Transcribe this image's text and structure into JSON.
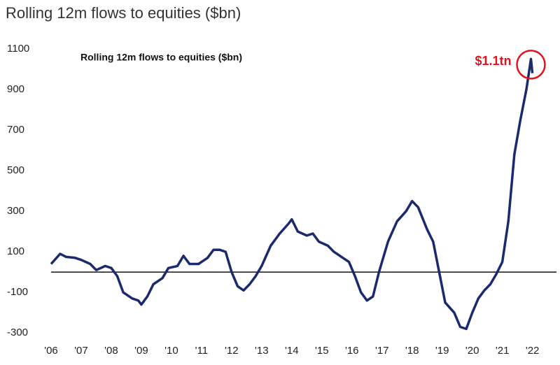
{
  "chart_data": {
    "type": "line",
    "title": "Rolling 12m flows to equities ($bn)",
    "inner_title": "Rolling 12m flows to equities ($bn)",
    "annotation": "$1.1tn",
    "x": [
      2006.0,
      2006.3,
      2006.5,
      2006.8,
      2007.0,
      2007.3,
      2007.5,
      2007.8,
      2008.0,
      2008.2,
      2008.4,
      2008.7,
      2008.9,
      2009.0,
      2009.2,
      2009.4,
      2009.7,
      2009.9,
      2010.2,
      2010.4,
      2010.6,
      2010.9,
      2011.2,
      2011.4,
      2011.6,
      2011.8,
      2012.0,
      2012.2,
      2012.4,
      2012.6,
      2012.8,
      2013.0,
      2013.3,
      2013.6,
      2013.9,
      2014.0,
      2014.2,
      2014.5,
      2014.7,
      2014.9,
      2015.2,
      2015.4,
      2015.7,
      2015.9,
      2016.1,
      2016.3,
      2016.5,
      2016.7,
      2016.9,
      2017.2,
      2017.5,
      2017.8,
      2018.0,
      2018.2,
      2018.5,
      2018.7,
      2018.9,
      2019.1,
      2019.4,
      2019.6,
      2019.8,
      2020.0,
      2020.2,
      2020.4,
      2020.6,
      2020.8,
      2021.0,
      2021.2,
      2021.4,
      2021.6,
      2021.8,
      2021.95,
      2022.0
    ],
    "series": [
      {
        "name": "Rolling 12m flows",
        "color": "#1a2a6c",
        "values": [
          40,
          90,
          75,
          70,
          60,
          40,
          10,
          30,
          20,
          -20,
          -100,
          -130,
          -140,
          -160,
          -120,
          -60,
          -30,
          20,
          30,
          80,
          40,
          40,
          70,
          110,
          110,
          100,
          0,
          -70,
          -90,
          -60,
          -20,
          30,
          130,
          190,
          240,
          260,
          200,
          180,
          190,
          150,
          130,
          100,
          70,
          50,
          -20,
          -100,
          -140,
          -120,
          0,
          150,
          250,
          300,
          350,
          320,
          210,
          150,
          0,
          -150,
          -200,
          -270,
          -280,
          -200,
          -130,
          -90,
          -60,
          -10,
          50,
          250,
          580,
          750,
          900,
          1050,
          980
        ]
      }
    ],
    "xlim": [
      2006,
      2022.8
    ],
    "xticks": [
      {
        "value": 2006,
        "label": "'06"
      },
      {
        "value": 2007,
        "label": "'07"
      },
      {
        "value": 2008,
        "label": "'08"
      },
      {
        "value": 2009,
        "label": "'09"
      },
      {
        "value": 2010,
        "label": "'10"
      },
      {
        "value": 2011,
        "label": "'11"
      },
      {
        "value": 2012,
        "label": "'12"
      },
      {
        "value": 2013,
        "label": "'13"
      },
      {
        "value": 2014,
        "label": "'14"
      },
      {
        "value": 2015,
        "label": "'15"
      },
      {
        "value": 2016,
        "label": "'16"
      },
      {
        "value": 2017,
        "label": "'17"
      },
      {
        "value": 2018,
        "label": "'18"
      },
      {
        "value": 2019,
        "label": "'19"
      },
      {
        "value": 2020,
        "label": "'20"
      },
      {
        "value": 2021,
        "label": "'21"
      },
      {
        "value": 2022,
        "label": "'22"
      }
    ],
    "ylim": [
      -320,
      1110
    ],
    "yticks": [
      -300,
      -100,
      100,
      300,
      500,
      700,
      900,
      1100
    ],
    "grid": false,
    "annotation_color": "#e8101a"
  }
}
